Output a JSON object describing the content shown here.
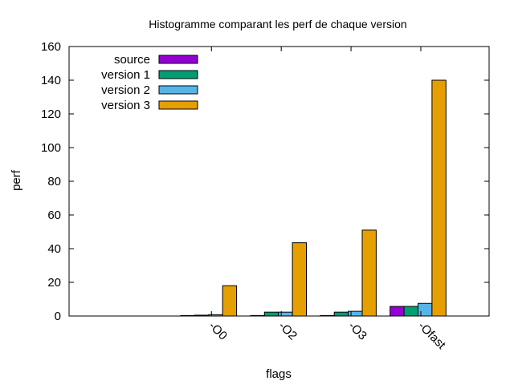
{
  "chart_data": {
    "type": "bar",
    "title": "Histogramme comparant les perf de chaque version",
    "xlabel": "flags",
    "ylabel": "perf",
    "ylim": [
      0,
      160
    ],
    "yticks": [
      0,
      20,
      40,
      60,
      80,
      100,
      120,
      140,
      160
    ],
    "grid": false,
    "legend_position": "top-left",
    "categories": [
      "-O0",
      "-O2",
      "-O3",
      "-Ofast"
    ],
    "series": [
      {
        "name": "source",
        "color": "#9400d3",
        "values": [
          0.3,
          0.3,
          0.3,
          5.7
        ]
      },
      {
        "name": "version 1",
        "color": "#009e73",
        "values": [
          0.5,
          2.3,
          2.3,
          5.7
        ]
      },
      {
        "name": "version 2",
        "color": "#56b4e9",
        "values": [
          0.8,
          2.3,
          2.8,
          7.5
        ]
      },
      {
        "name": "version 3",
        "color": "#e69f00",
        "values": [
          18,
          43.5,
          51,
          140
        ]
      }
    ]
  }
}
